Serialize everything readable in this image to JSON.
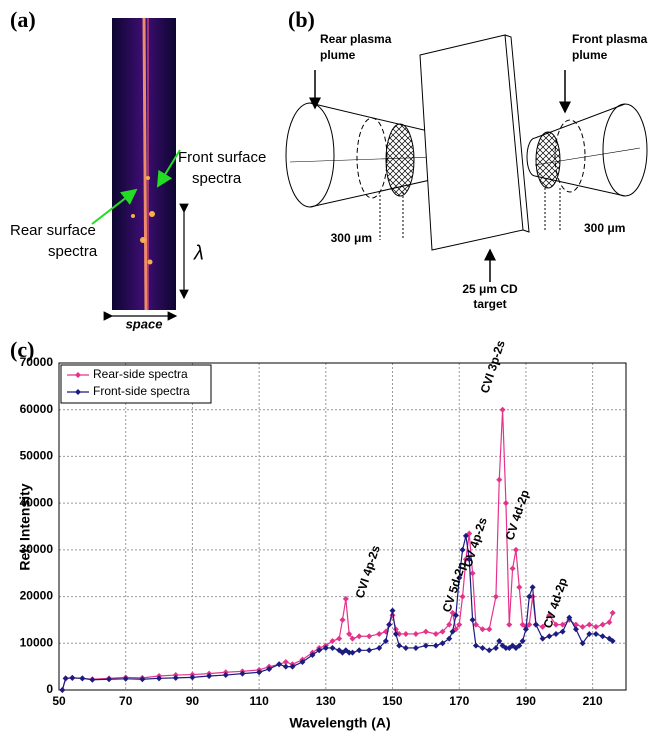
{
  "panel_a": {
    "label": "(a)",
    "front_label": [
      "Front surface",
      "spectra"
    ],
    "rear_label": [
      "Rear surface",
      "spectra"
    ],
    "lambda": "λ",
    "space": "space"
  },
  "panel_b": {
    "label": "(b)",
    "rear_plume": [
      "Rear plasma",
      "plume"
    ],
    "front_plume": [
      "Front plasma",
      "plume"
    ],
    "left_dim": "300 μm",
    "right_dim": "300 μm",
    "target": [
      "25 μm CD",
      "target"
    ]
  },
  "chart_data": {
    "type": "line",
    "panel_label": "(c)",
    "xlabel": "Wavelength (A)",
    "ylabel": "Rel. Intensity",
    "annotations": [
      "CVI 4p-2s",
      "CV 5d-2p",
      "CV 4p-2s",
      "CVI 3p-2s",
      "CV 4d-2p",
      "CV 4d-2p"
    ],
    "xlim": [
      50,
      220
    ],
    "xticks": [
      50,
      70,
      90,
      110,
      130,
      150,
      170,
      190,
      210
    ],
    "ylim": [
      0,
      70000
    ],
    "yticks": [
      0,
      10000,
      20000,
      30000,
      40000,
      50000,
      60000,
      70000
    ],
    "grid": true,
    "legend": "upper left",
    "x": [
      51,
      52,
      54,
      57,
      60,
      65,
      70,
      75,
      80,
      85,
      90,
      95,
      100,
      105,
      110,
      113,
      116,
      118,
      120,
      123,
      126,
      128,
      130,
      132,
      134,
      135,
      136,
      137,
      138,
      140,
      143,
      146,
      148,
      149,
      150,
      151,
      152,
      154,
      157,
      160,
      163,
      165,
      167,
      168,
      169,
      170,
      171,
      172,
      173,
      174,
      175,
      177,
      179,
      181,
      182,
      183,
      184,
      185,
      186,
      187,
      188,
      189,
      190,
      191,
      192,
      193,
      195,
      197,
      199,
      201,
      203,
      205,
      207,
      209,
      211,
      213,
      215,
      216
    ],
    "series": [
      {
        "name": "Rear-side spectra",
        "color": "#e5338c",
        "values": [
          0,
          2500,
          2600,
          2500,
          2300,
          2500,
          2700,
          2600,
          3000,
          3200,
          3300,
          3500,
          3800,
          4000,
          4300,
          5000,
          5500,
          6000,
          5500,
          6500,
          8000,
          9000,
          9500,
          10500,
          11000,
          15000,
          19500,
          12000,
          11000,
          11500,
          11500,
          12000,
          12500,
          14000,
          16000,
          13000,
          12000,
          12000,
          12000,
          12500,
          12000,
          12500,
          14000,
          16500,
          13000,
          14000,
          20000,
          28000,
          33500,
          25000,
          14000,
          13000,
          13000,
          20000,
          45000,
          60000,
          40000,
          14000,
          26000,
          30000,
          22000,
          14000,
          13500,
          14000,
          20000,
          14000,
          13500,
          16000,
          14000,
          14000,
          15000,
          14000,
          13500,
          14000,
          13500,
          14000,
          14500,
          16500
        ]
      },
      {
        "name": "Front-side spectra",
        "color": "#1c1c80",
        "values": [
          0,
          2500,
          2600,
          2500,
          2200,
          2300,
          2400,
          2300,
          2500,
          2600,
          2700,
          3000,
          3200,
          3500,
          3800,
          4500,
          5500,
          5000,
          5000,
          6000,
          7500,
          8500,
          9000,
          9000,
          8500,
          8000,
          8500,
          8000,
          8000,
          8500,
          8500,
          9000,
          10500,
          14000,
          17000,
          12000,
          9500,
          9000,
          9000,
          9500,
          9500,
          10000,
          11000,
          12500,
          16000,
          24000,
          30000,
          33000,
          28000,
          15000,
          9500,
          9000,
          8500,
          9000,
          10500,
          9500,
          9000,
          9000,
          9500,
          9000,
          9500,
          10500,
          13000,
          20000,
          22000,
          14000,
          11000,
          11500,
          12000,
          12500,
          15500,
          13000,
          10000,
          12000,
          12000,
          11500,
          11000,
          10500
        ]
      }
    ]
  }
}
